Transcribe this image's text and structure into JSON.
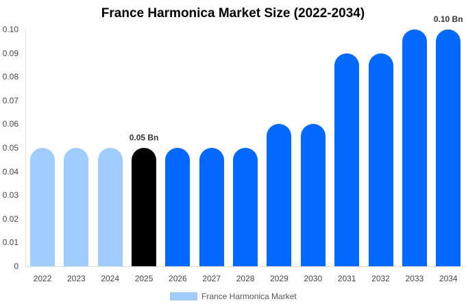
{
  "title": "France Harmonica Market Size (2022-2034)",
  "legend": {
    "label": "France Harmonica Market",
    "color": "#a0cdfe"
  },
  "colors": {
    "historic": "#a0cdfe",
    "current": "#000000",
    "forecast": "#0368fe"
  },
  "y_ticks": [
    "0.10",
    "0.09",
    "0.08",
    "0.07",
    "0.06",
    "0.05",
    "0.04",
    "0.03",
    "0.02",
    "0.01",
    "0"
  ],
  "annotations": [
    {
      "year": "2025",
      "text": "0.05 Bn"
    },
    {
      "year": "2034",
      "text": "0.10 Bn"
    }
  ],
  "chart_data": {
    "type": "bar",
    "title": "France Harmonica Market Size (2022-2034)",
    "xlabel": "",
    "ylabel": "",
    "ylim": [
      0,
      0.1
    ],
    "grid": false,
    "legend_position": "bottom",
    "categories": [
      "2022",
      "2023",
      "2024",
      "2025",
      "2026",
      "2027",
      "2028",
      "2029",
      "2030",
      "2031",
      "2032",
      "2033",
      "2034"
    ],
    "series": [
      {
        "name": "France Harmonica Market",
        "values": [
          0.05,
          0.05,
          0.05,
          0.05,
          0.05,
          0.05,
          0.05,
          0.06,
          0.06,
          0.09,
          0.09,
          0.1,
          0.1
        ]
      }
    ],
    "bar_colors": [
      "#a0cdfe",
      "#a0cdfe",
      "#a0cdfe",
      "#000000",
      "#0368fe",
      "#0368fe",
      "#0368fe",
      "#0368fe",
      "#0368fe",
      "#0368fe",
      "#0368fe",
      "#0368fe",
      "#0368fe"
    ],
    "annotations": [
      {
        "x": "2025",
        "text": "0.05 Bn"
      },
      {
        "x": "2034",
        "text": "0.10 Bn"
      }
    ]
  }
}
